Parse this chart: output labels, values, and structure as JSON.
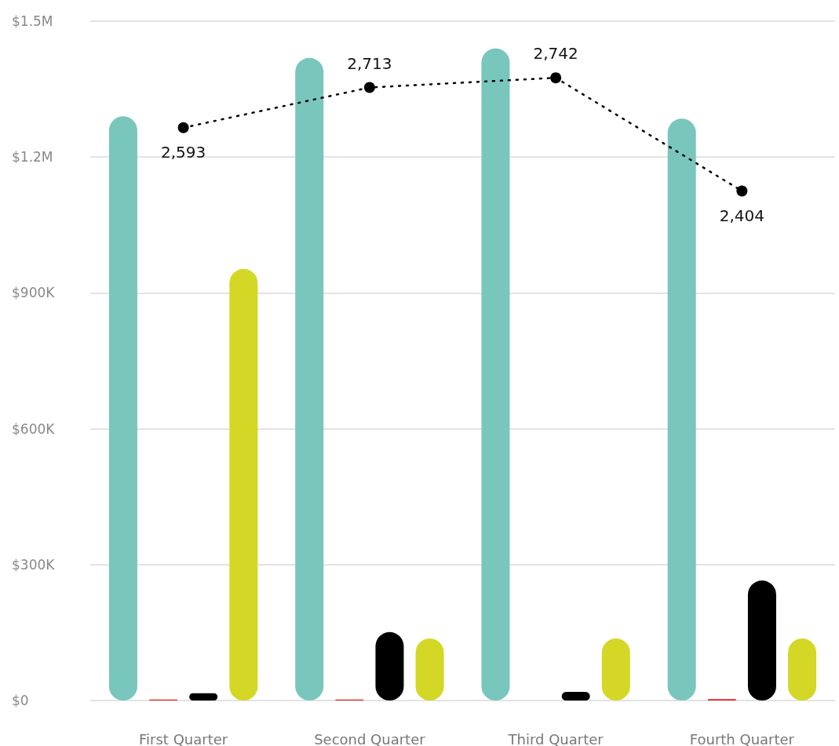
{
  "chart_data": {
    "type": "bar",
    "categories": [
      "First Quarter",
      "Second Quarter",
      "Third Quarter",
      "Fourth Quarter"
    ],
    "series": [
      {
        "color": "#79c6bd",
        "values": [
          1290000,
          1419000,
          1440000,
          1285000
        ]
      },
      {
        "color": "#e8201e",
        "values": [
          2000,
          2000,
          0,
          3000
        ]
      },
      {
        "color": "#000000",
        "values": [
          16000,
          151000,
          19000,
          265000
        ]
      },
      {
        "color": "#d4d725",
        "values": [
          953000,
          137000,
          137000,
          137000
        ]
      },
      {
        "type": "line",
        "axis": "y2",
        "color": "#000000",
        "values": [
          2593,
          2713,
          2742,
          2404
        ],
        "value_labels": [
          "2,593",
          "2,713",
          "2,742",
          "2,404"
        ],
        "marker": "circle",
        "line_style": "dotted"
      }
    ],
    "ylim": [
      0,
      1500000
    ],
    "yticks": [
      {
        "value": 0,
        "label": "$0"
      },
      {
        "value": 300000,
        "label": "$300K"
      },
      {
        "value": 600000,
        "label": "$600K"
      },
      {
        "value": 900000,
        "label": "$900K"
      },
      {
        "value": 1200000,
        "label": "$1.2M"
      },
      {
        "value": 1500000,
        "label": "$1.5M"
      }
    ],
    "grid": "y"
  }
}
